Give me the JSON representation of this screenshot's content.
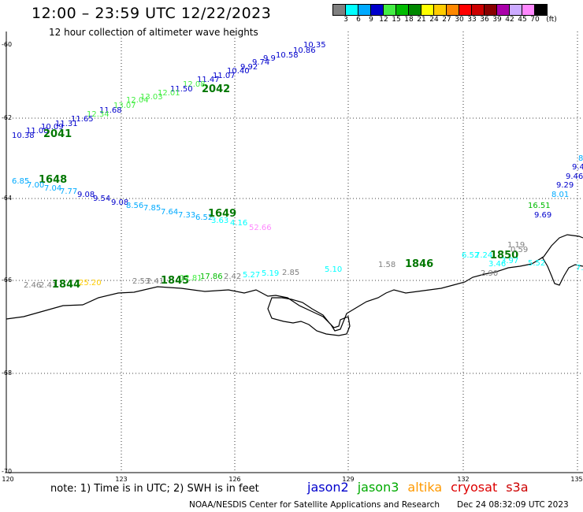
{
  "header": {
    "title": "12:00 – 23:59 UTC 12/22/2023",
    "subtitle": "12 hour collection of altimeter wave heights"
  },
  "colorbar": {
    "unit": "(ft)",
    "colors": [
      "#808080",
      "#00ffff",
      "#00aaff",
      "#0000cc",
      "#44ee44",
      "#00bb00",
      "#008800",
      "#ffff00",
      "#ffcc00",
      "#ff8800",
      "#ff0000",
      "#cc0000",
      "#880000",
      "#aa00aa",
      "#ccaaff",
      "#ff88ff",
      "#000000"
    ],
    "labels": [
      "3",
      "6",
      "9",
      "12",
      "15",
      "18",
      "21",
      "24",
      "27",
      "30",
      "33",
      "36",
      "39",
      "42",
      "45",
      "70"
    ]
  },
  "axes": {
    "lat_labels": [
      "-60",
      "-62",
      "-64",
      "-66",
      "-68",
      "-70"
    ],
    "lon_labels": [
      "120",
      "123",
      "126",
      "129",
      "132",
      "135"
    ]
  },
  "map_labels": [
    {
      "t": "10.35",
      "c": "#0000cc"
    },
    {
      "t": "10.86",
      "c": "#0000cc"
    },
    {
      "t": "10.58",
      "c": "#0000cc"
    },
    {
      "t": "9.9",
      "c": "#0000cc"
    },
    {
      "t": "9.74",
      "c": "#0000cc"
    },
    {
      "t": "9.92",
      "c": "#0000cc"
    },
    {
      "t": "10.40",
      "c": "#0000cc"
    },
    {
      "t": "11.07",
      "c": "#0000cc"
    },
    {
      "t": "11.47",
      "c": "#0000cc"
    },
    {
      "t": "2042",
      "c": "#007700"
    },
    {
      "t": "12.08",
      "c": "#44ee44"
    },
    {
      "t": "11.50",
      "c": "#0000cc"
    },
    {
      "t": "12.01",
      "c": "#44ee44"
    },
    {
      "t": "13.03",
      "c": "#44ee44"
    },
    {
      "t": "12.04",
      "c": "#44ee44"
    },
    {
      "t": "13.07",
      "c": "#44ee44"
    },
    {
      "t": "11.68",
      "c": "#0000cc"
    },
    {
      "t": "12.34",
      "c": "#44ee44"
    },
    {
      "t": "11.65",
      "c": "#0000cc"
    },
    {
      "t": "11.31",
      "c": "#0000cc"
    },
    {
      "t": "10.09",
      "c": "#0000cc"
    },
    {
      "t": "11.08",
      "c": "#0000cc"
    },
    {
      "t": "10.38",
      "c": "#0000cc"
    },
    {
      "t": "2041",
      "c": "#007700"
    },
    {
      "t": "6.85",
      "c": "#00aaff"
    },
    {
      "t": "1648",
      "c": "#007700"
    },
    {
      "t": "7.00",
      "c": "#00aaff"
    },
    {
      "t": "7.04",
      "c": "#00aaff"
    },
    {
      "t": "7.77",
      "c": "#00aaff"
    },
    {
      "t": "9.08",
      "c": "#0000cc"
    },
    {
      "t": "9.54",
      "c": "#0000cc"
    },
    {
      "t": "9.08",
      "c": "#0000cc"
    },
    {
      "t": "8.56",
      "c": "#00aaff"
    },
    {
      "t": "7.85",
      "c": "#00aaff"
    },
    {
      "t": "7.64",
      "c": "#00aaff"
    },
    {
      "t": "7.33",
      "c": "#00aaff"
    },
    {
      "t": "6.52",
      "c": "#00aaff"
    },
    {
      "t": "1649",
      "c": "#007700"
    },
    {
      "t": "3.63",
      "c": "#00ffff"
    },
    {
      "t": "4.16",
      "c": "#00ffff"
    },
    {
      "t": "52.66",
      "c": "#ff88ff"
    },
    {
      "t": "2.46",
      "c": "#808080"
    },
    {
      "t": "2.41",
      "c": "#808080"
    },
    {
      "t": "1844",
      "c": "#007700"
    },
    {
      "t": "25.20",
      "c": "#ffcc00"
    },
    {
      "t": "2.53",
      "c": "#808080"
    },
    {
      "t": "2.41",
      "c": "#808080"
    },
    {
      "t": "1845",
      "c": "#007700"
    },
    {
      "t": "12.81",
      "c": "#44ee44"
    },
    {
      "t": "17.86",
      "c": "#00bb00"
    },
    {
      "t": "2.42",
      "c": "#808080"
    },
    {
      "t": "5.27",
      "c": "#00ffff"
    },
    {
      "t": "5.19",
      "c": "#00ffff"
    },
    {
      "t": "2.85",
      "c": "#808080"
    },
    {
      "t": "5.10",
      "c": "#00ffff"
    },
    {
      "t": "1.58",
      "c": "#808080"
    },
    {
      "t": "1846",
      "c": "#007700"
    },
    {
      "t": "6.52",
      "c": "#00ffff"
    },
    {
      "t": "7.24",
      "c": "#00ffff"
    },
    {
      "t": "1850",
      "c": "#007700"
    },
    {
      "t": "1.19",
      "c": "#808080"
    },
    {
      "t": "0.59",
      "c": "#808080"
    },
    {
      "t": "3.46",
      "c": "#00ffff"
    },
    {
      "t": "3.97",
      "c": "#00ffff"
    },
    {
      "t": "2.90",
      "c": "#808080"
    },
    {
      "t": "5.52",
      "c": "#00ffff"
    },
    {
      "t": "7.",
      "c": "#00ffff"
    },
    {
      "t": "9.69",
      "c": "#0000cc"
    },
    {
      "t": "16.51",
      "c": "#00bb00"
    },
    {
      "t": "8.01",
      "c": "#00aaff"
    },
    {
      "t": "9.29",
      "c": "#0000cc"
    },
    {
      "t": "9.46",
      "c": "#0000cc"
    },
    {
      "t": "9.4",
      "c": "#0000cc"
    },
    {
      "t": "8",
      "c": "#00aaff"
    }
  ],
  "footer": {
    "note": "note: 1) Time is in UTC; 2) SWH is in feet",
    "credit": "NOAA/NESDIS Center for Satellite Applications and Research",
    "timestamp": "Dec 24 08:32:09 UTC 2023"
  },
  "legend": [
    {
      "name": "jason2",
      "color": "#0000cc"
    },
    {
      "name": "jason3",
      "color": "#00aa00"
    },
    {
      "name": "altika",
      "color": "#ff9900"
    },
    {
      "name": "cryosat",
      "color": "#dd0000"
    },
    {
      "name": "s3a",
      "color": "#cc0000"
    }
  ]
}
